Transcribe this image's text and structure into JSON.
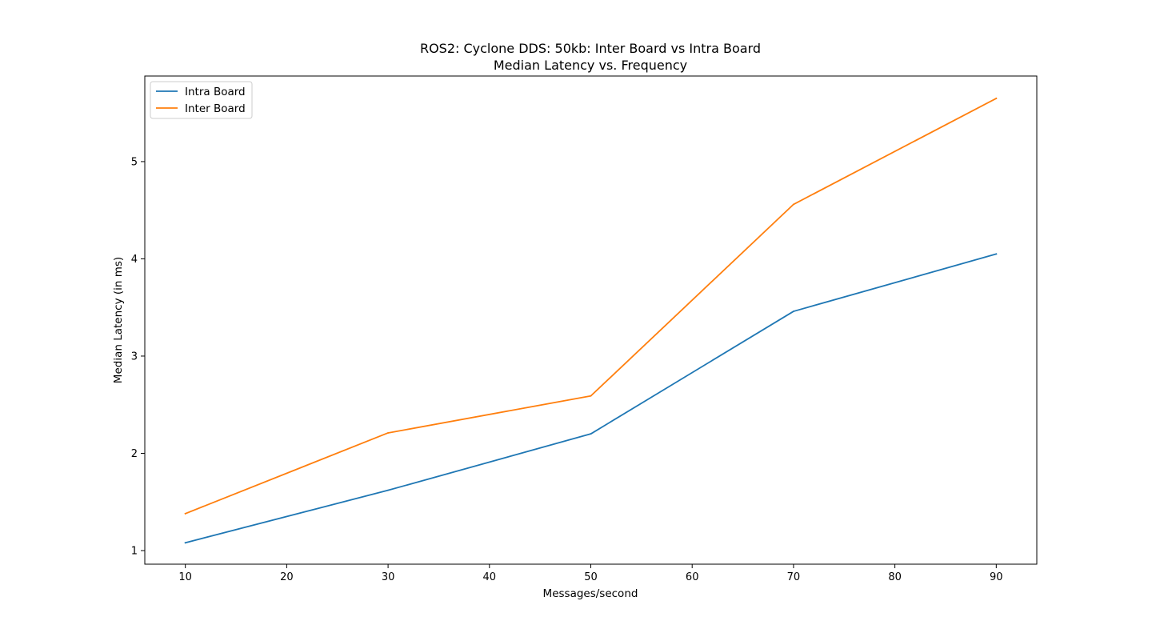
{
  "chart_data": {
    "type": "line",
    "title": "ROS2: Cyclone DDS: 50kb: Inter Board vs Intra Board",
    "subtitle": "Median Latency vs. Frequency",
    "xlabel": "Messages/second",
    "ylabel": "Median Latency (in ms)",
    "x": [
      10,
      30,
      50,
      70,
      90
    ],
    "xlim": [
      6,
      94
    ],
    "ylim": [
      0.86,
      5.88
    ],
    "xticks": [
      10,
      20,
      30,
      40,
      50,
      60,
      70,
      80,
      90
    ],
    "yticks": [
      1,
      2,
      3,
      4,
      5
    ],
    "grid": false,
    "legend_position": "top-left",
    "series": [
      {
        "name": "Intra Board",
        "color": "#1f77b4",
        "values": [
          1.08,
          1.62,
          2.2,
          3.46,
          4.05
        ]
      },
      {
        "name": "Inter Board",
        "color": "#ff7f0e",
        "values": [
          1.38,
          2.21,
          2.59,
          4.56,
          5.65
        ]
      }
    ]
  }
}
